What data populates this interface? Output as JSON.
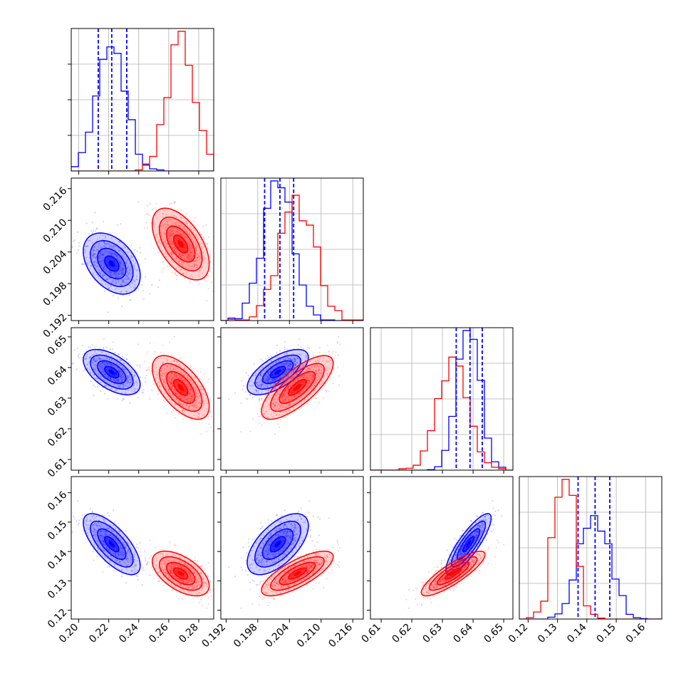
{
  "chart_data": {
    "type": "scatter",
    "title": "",
    "parameters": [
      {
        "range": [
          0.195,
          0.29
        ],
        "ticks": [
          0.2,
          0.22,
          0.24,
          0.26,
          0.28
        ],
        "tick_labels": [
          "0.20",
          "0.22",
          "0.24",
          "0.26",
          "0.28"
        ]
      },
      {
        "range": [
          0.191,
          0.218
        ],
        "ticks": [
          0.192,
          0.198,
          0.204,
          0.21,
          0.216
        ],
        "tick_labels": [
          "0.192",
          "0.198",
          "0.204",
          "0.210",
          "0.216"
        ]
      },
      {
        "range": [
          0.6065,
          0.653
        ],
        "ticks": [
          0.61,
          0.62,
          0.63,
          0.64,
          0.65
        ],
        "tick_labels": [
          "0.61",
          "0.62",
          "0.63",
          "0.64",
          "0.65"
        ]
      },
      {
        "range": [
          0.117,
          0.1655
        ],
        "ticks": [
          0.12,
          0.13,
          0.14,
          0.15,
          0.16
        ],
        "tick_labels": [
          "0.12",
          "0.13",
          "0.14",
          "0.15",
          "0.16"
        ]
      }
    ],
    "series": [
      {
        "color": "#0000ff",
        "mean": [
          0.222,
          0.2018,
          0.6385,
          0.1425
        ],
        "std": [
          0.0095,
          0.0029,
          0.0037,
          0.0052
        ],
        "corr": [
          [
            1.0,
            -0.4,
            -0.55,
            -0.7
          ],
          [
            -0.4,
            1.0,
            0.65,
            0.6
          ],
          [
            -0.55,
            0.65,
            1.0,
            0.85
          ],
          [
            -0.7,
            0.6,
            0.85,
            1.0
          ]
        ],
        "quantiles": [
          [
            0.213,
            0.222,
            0.232
          ],
          [
            0.1993,
            0.2022,
            0.2048
          ],
          [
            0.6345,
            0.639,
            0.643
          ],
          [
            0.137,
            0.1428,
            0.1478
          ]
        ]
      },
      {
        "color": "#ff0000",
        "mean": [
          0.268,
          0.2055,
          0.6335,
          0.1325
        ],
        "std": [
          0.0095,
          0.0034,
          0.0052,
          0.0038
        ],
        "corr": [
          [
            1.0,
            -0.55,
            -0.6,
            -0.55
          ],
          [
            -0.55,
            1.0,
            0.75,
            0.75
          ],
          [
            -0.6,
            0.75,
            1.0,
            0.85
          ],
          [
            -0.55,
            0.75,
            0.85,
            1.0
          ]
        ]
      }
    ]
  },
  "colors": {
    "blue": "#0000ff",
    "red": "#ff0000",
    "grid": "#b0b0b0",
    "axis": "#000000"
  }
}
